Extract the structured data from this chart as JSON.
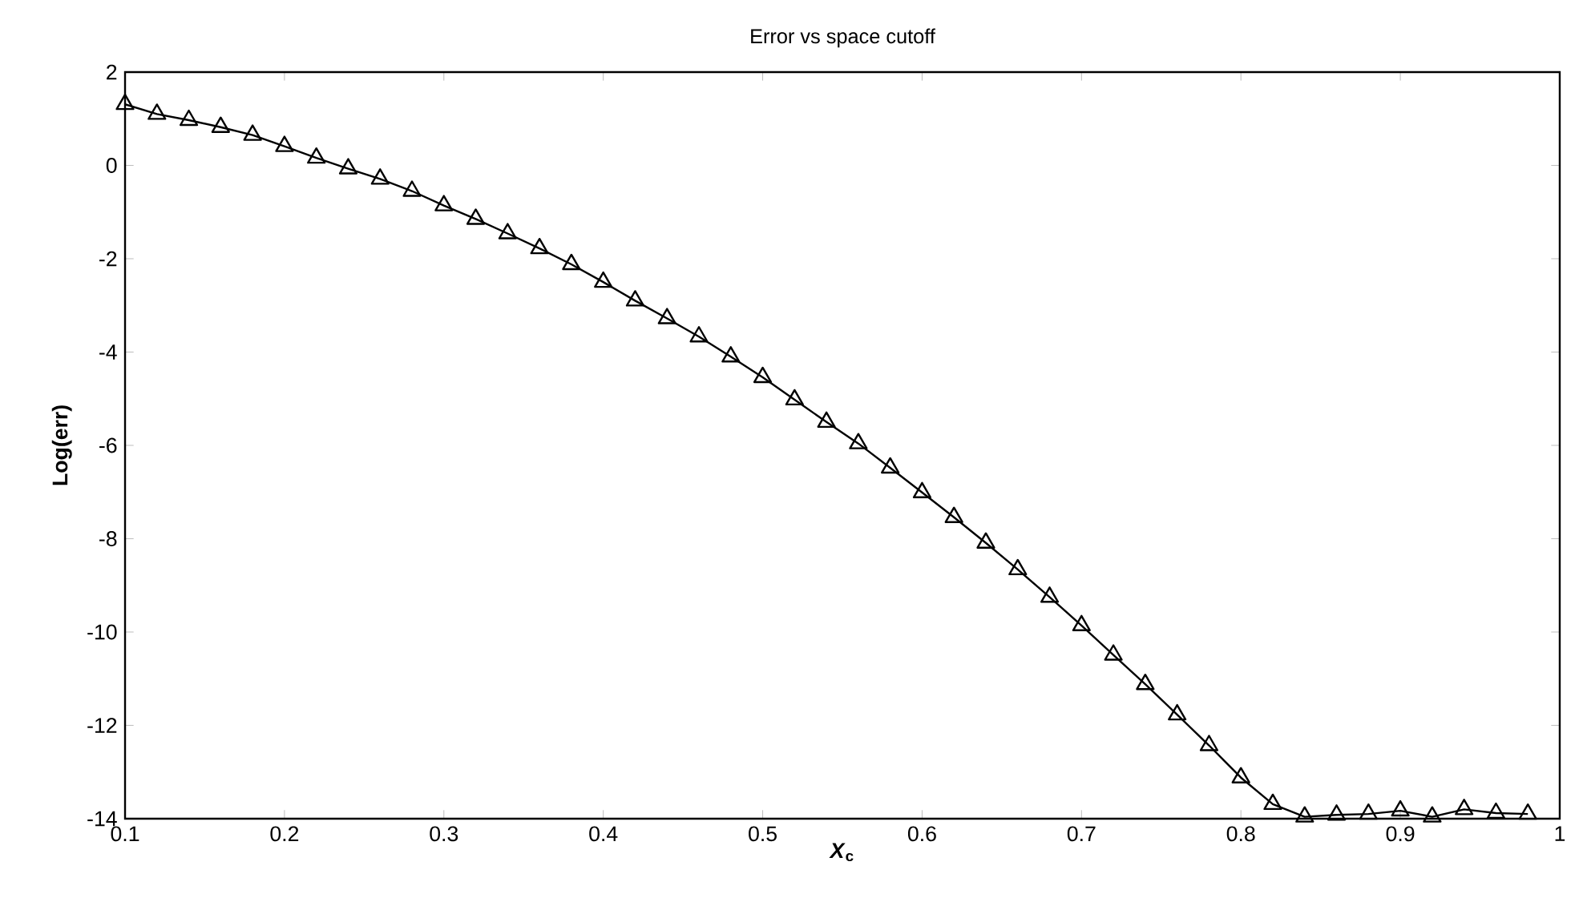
{
  "chart_data": {
    "type": "line",
    "title": "Error vs space cutoff",
    "xlabel": "*X*$_{c}$",
    "ylabel": "Log(err)",
    "x": [
      0.1,
      0.12,
      0.14,
      0.16,
      0.18,
      0.2,
      0.22,
      0.24,
      0.26,
      0.28,
      0.3,
      0.32,
      0.34,
      0.36,
      0.38,
      0.4,
      0.42,
      0.44,
      0.46,
      0.48,
      0.5,
      0.52,
      0.54,
      0.56,
      0.58,
      0.6,
      0.62,
      0.64,
      0.66,
      0.68,
      0.7,
      0.72,
      0.74,
      0.76,
      0.78,
      0.8,
      0.82,
      0.84,
      0.86,
      0.88,
      0.9,
      0.92,
      0.94,
      0.96,
      0.98
    ],
    "series": [
      {
        "color": "#000000",
        "values": [
          1.31,
          1.1,
          0.97,
          0.82,
          0.65,
          0.41,
          0.16,
          -0.07,
          -0.29,
          -0.55,
          -0.86,
          -1.15,
          -1.46,
          -1.78,
          -2.12,
          -2.5,
          -2.9,
          -3.28,
          -3.67,
          -4.1,
          -4.54,
          -5.02,
          -5.5,
          -5.96,
          -6.48,
          -7.01,
          -7.54,
          -8.09,
          -8.66,
          -9.25,
          -9.86,
          -10.49,
          -11.12,
          -11.77,
          -12.43,
          -13.12,
          -13.69,
          -13.96,
          -13.92,
          -13.9,
          -13.83,
          -13.96,
          -13.8,
          -13.88,
          -13.9
        ]
      }
    ],
    "xlim": [
      0.1,
      1
    ],
    "ylim": [
      -14,
      2
    ],
    "xticks": [
      0.1,
      0.2,
      0.3,
      0.4,
      0.5,
      0.6,
      0.7,
      0.8,
      0.9,
      1
    ],
    "yticks": [
      -14,
      -12,
      -10,
      -8,
      -6,
      -4,
      -2,
      0,
      2
    ],
    "grid": false,
    "marker": "triangle",
    "line_style": "solid"
  }
}
